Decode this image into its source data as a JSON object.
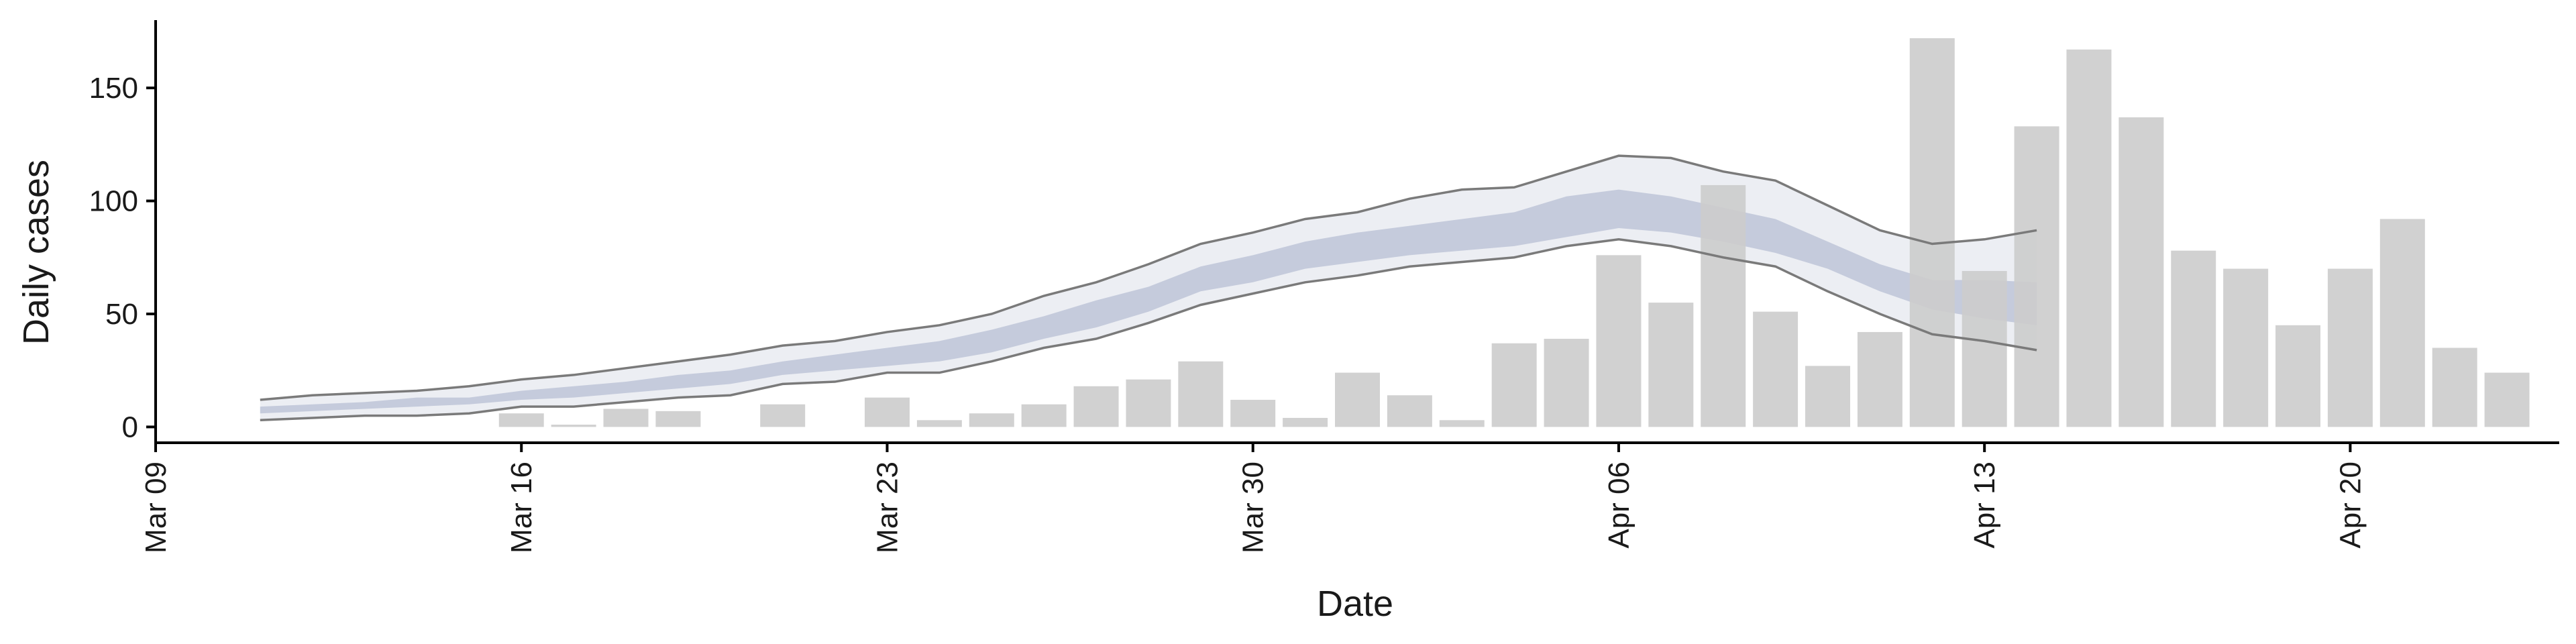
{
  "chart_data": {
    "type": "bar",
    "xlabel": "Date",
    "ylabel": "Daily cases",
    "ylim": [
      -7,
      180
    ],
    "yticks": [
      0,
      50,
      100,
      150
    ],
    "xlim": [
      "2020-03-09",
      "2020-04-24"
    ],
    "xticks": [
      {
        "date": "2020-03-09",
        "label": "Mar 09"
      },
      {
        "date": "2020-03-16",
        "label": "Mar 16"
      },
      {
        "date": "2020-03-23",
        "label": "Mar 23"
      },
      {
        "date": "2020-03-30",
        "label": "Mar 30"
      },
      {
        "date": "2020-04-06",
        "label": "Apr 06"
      },
      {
        "date": "2020-04-13",
        "label": "Apr 13"
      },
      {
        "date": "2020-04-20",
        "label": "Apr 20"
      }
    ],
    "bars": [
      {
        "date": "2020-03-16",
        "value": 6
      },
      {
        "date": "2020-03-17",
        "value": 1
      },
      {
        "date": "2020-03-18",
        "value": 8
      },
      {
        "date": "2020-03-19",
        "value": 7
      },
      {
        "date": "2020-03-21",
        "value": 10
      },
      {
        "date": "2020-03-23",
        "value": 13
      },
      {
        "date": "2020-03-24",
        "value": 3
      },
      {
        "date": "2020-03-25",
        "value": 6
      },
      {
        "date": "2020-03-26",
        "value": 10
      },
      {
        "date": "2020-03-27",
        "value": 18
      },
      {
        "date": "2020-03-28",
        "value": 21
      },
      {
        "date": "2020-03-29",
        "value": 29
      },
      {
        "date": "2020-03-30",
        "value": 12
      },
      {
        "date": "2020-03-31",
        "value": 4
      },
      {
        "date": "2020-04-01",
        "value": 24
      },
      {
        "date": "2020-04-02",
        "value": 14
      },
      {
        "date": "2020-04-03",
        "value": 3
      },
      {
        "date": "2020-04-04",
        "value": 37
      },
      {
        "date": "2020-04-05",
        "value": 39
      },
      {
        "date": "2020-04-06",
        "value": 76
      },
      {
        "date": "2020-04-07",
        "value": 55
      },
      {
        "date": "2020-04-08",
        "value": 107
      },
      {
        "date": "2020-04-09",
        "value": 51
      },
      {
        "date": "2020-04-10",
        "value": 27
      },
      {
        "date": "2020-04-11",
        "value": 42
      },
      {
        "date": "2020-04-12",
        "value": 172
      },
      {
        "date": "2020-04-13",
        "value": 69
      },
      {
        "date": "2020-04-14",
        "value": 133
      },
      {
        "date": "2020-04-15",
        "value": 167
      },
      {
        "date": "2020-04-16",
        "value": 137
      },
      {
        "date": "2020-04-17",
        "value": 78
      },
      {
        "date": "2020-04-18",
        "value": 70
      },
      {
        "date": "2020-04-19",
        "value": 45
      },
      {
        "date": "2020-04-20",
        "value": 70
      },
      {
        "date": "2020-04-21",
        "value": 92
      },
      {
        "date": "2020-04-22",
        "value": 35
      },
      {
        "date": "2020-04-23",
        "value": 24
      }
    ],
    "band": {
      "dates": [
        "2020-03-11",
        "2020-03-12",
        "2020-03-13",
        "2020-03-14",
        "2020-03-15",
        "2020-03-16",
        "2020-03-17",
        "2020-03-18",
        "2020-03-19",
        "2020-03-20",
        "2020-03-21",
        "2020-03-22",
        "2020-03-23",
        "2020-03-24",
        "2020-03-25",
        "2020-03-26",
        "2020-03-27",
        "2020-03-28",
        "2020-03-29",
        "2020-03-30",
        "2020-03-31",
        "2020-04-01",
        "2020-04-02",
        "2020-04-03",
        "2020-04-04",
        "2020-04-05",
        "2020-04-06",
        "2020-04-07",
        "2020-04-08",
        "2020-04-09",
        "2020-04-10",
        "2020-04-11",
        "2020-04-12",
        "2020-04-13",
        "2020-04-14"
      ],
      "lower90": [
        3,
        4,
        5,
        5,
        6,
        9,
        9,
        11,
        13,
        14,
        19,
        20,
        24,
        24,
        29,
        35,
        39,
        46,
        54,
        59,
        64,
        67,
        71,
        73,
        75,
        80,
        83,
        80,
        75,
        71,
        60,
        50,
        41,
        38,
        34
      ],
      "lower50": [
        6,
        7,
        8,
        9,
        10,
        12,
        13,
        15,
        17,
        19,
        23,
        25,
        27,
        29,
        33,
        39,
        44,
        51,
        60,
        64,
        70,
        73,
        76,
        78,
        80,
        84,
        88,
        86,
        82,
        77,
        70,
        60,
        52,
        48,
        45
      ],
      "upper50": [
        9,
        10,
        11,
        13,
        13,
        16,
        18,
        20,
        23,
        25,
        29,
        32,
        35,
        38,
        43,
        49,
        56,
        62,
        71,
        76,
        82,
        86,
        89,
        92,
        95,
        102,
        105,
        102,
        97,
        92,
        82,
        72,
        65,
        65,
        64
      ],
      "upper90": [
        12,
        14,
        15,
        16,
        18,
        21,
        23,
        26,
        29,
        32,
        36,
        38,
        42,
        45,
        50,
        58,
        64,
        72,
        81,
        86,
        92,
        95,
        101,
        105,
        106,
        113,
        120,
        119,
        113,
        109,
        98,
        87,
        81,
        83,
        87
      ]
    },
    "colors": {
      "bar": "#cccccc",
      "band_outer": "#eceef3",
      "band_inner": "#c5cbdc",
      "bound_line": "#7a7a7a",
      "axis": "#000000"
    }
  }
}
